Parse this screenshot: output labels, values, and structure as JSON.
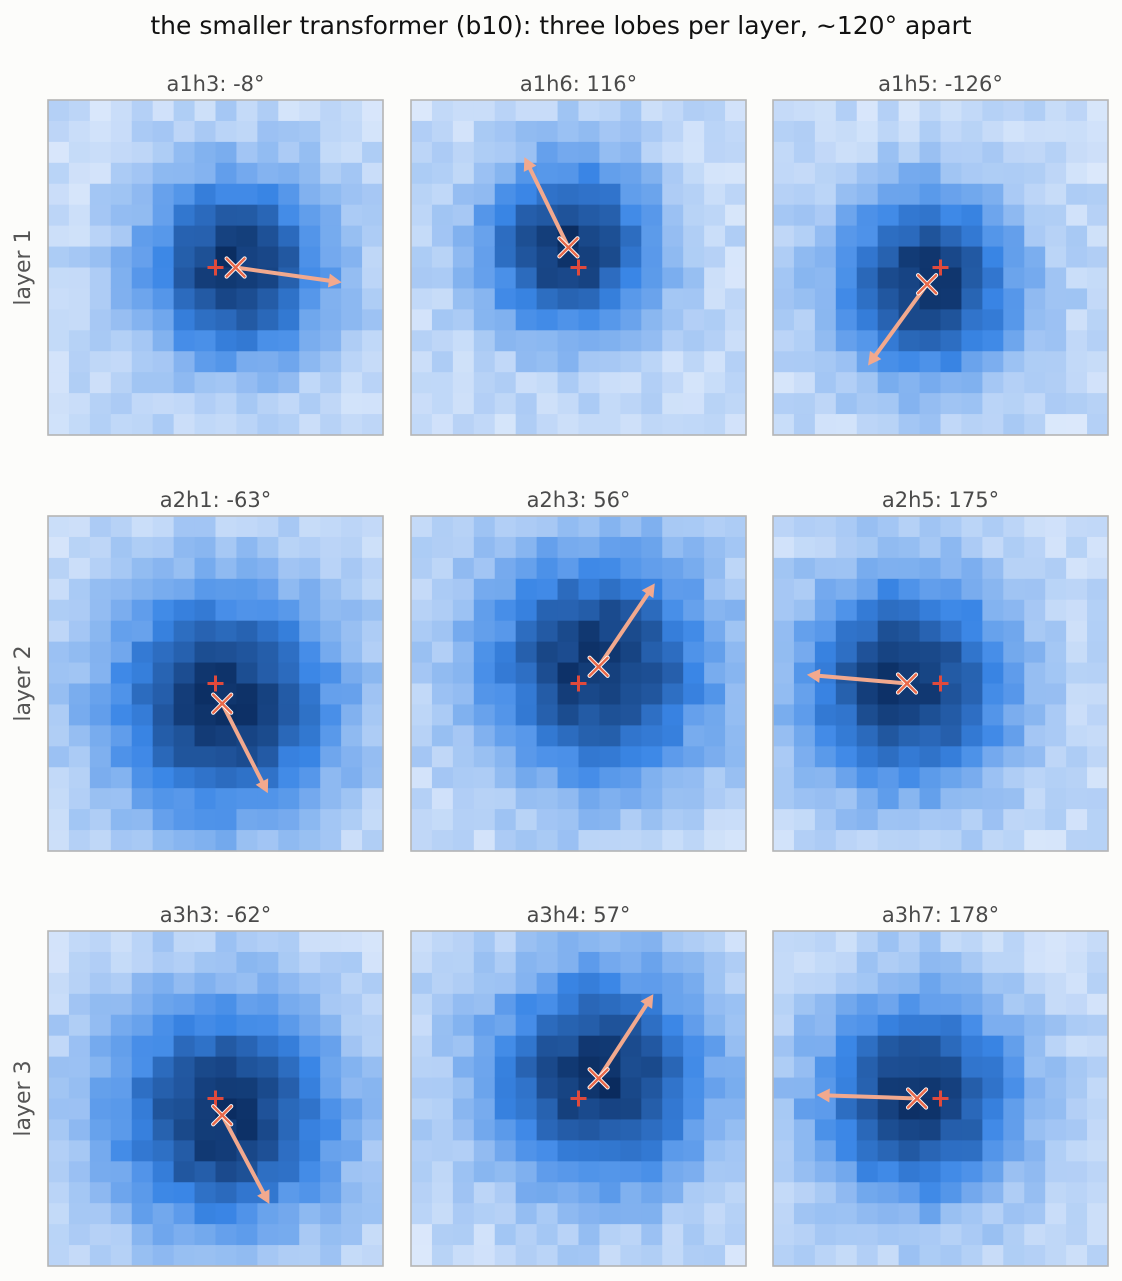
{
  "chart_data": {
    "type": "heatmap",
    "title": "the smaller transformer (b10): three lobes per layer, ~120° apart",
    "rows": [
      {
        "label": "layer 1"
      },
      {
        "label": "layer 2"
      },
      {
        "label": "layer 3"
      }
    ],
    "grid_cells": 16,
    "colors": {
      "light": "#dbe8fb",
      "mid": "#3a86e6",
      "dark": "#0a2b5e",
      "arrow": "#f2a98e",
      "marker_plus": "#e04a3c",
      "marker_x": "#e8694a",
      "frame": "#b5b5b5"
    },
    "panels": [
      {
        "label": "a1h3: -8°",
        "angle": -8,
        "center": [
          0.5,
          0.5
        ],
        "peak": [
          0.56,
          0.5
        ],
        "length": 0.32,
        "spread": 0.19
      },
      {
        "label": "a1h6: 116°",
        "angle": 116,
        "center": [
          0.5,
          0.5
        ],
        "peak": [
          0.47,
          0.44
        ],
        "length": 0.3,
        "spread": 0.18
      },
      {
        "label": "a1h5: -126°",
        "angle": -126,
        "center": [
          0.5,
          0.5
        ],
        "peak": [
          0.46,
          0.55
        ],
        "length": 0.3,
        "spread": 0.19
      },
      {
        "label": "a2h1: -63°",
        "angle": -63,
        "center": [
          0.5,
          0.5
        ],
        "peak": [
          0.52,
          0.56
        ],
        "length": 0.3,
        "spread": 0.24
      },
      {
        "label": "a2h3: 56°",
        "angle": 56,
        "center": [
          0.5,
          0.5
        ],
        "peak": [
          0.56,
          0.45
        ],
        "length": 0.3,
        "spread": 0.24
      },
      {
        "label": "a2h5: 175°",
        "angle": 175,
        "center": [
          0.5,
          0.5
        ],
        "peak": [
          0.4,
          0.5
        ],
        "length": 0.3,
        "spread": 0.22
      },
      {
        "label": "a3h3: -62°",
        "angle": -62,
        "center": [
          0.5,
          0.5
        ],
        "peak": [
          0.52,
          0.55
        ],
        "length": 0.3,
        "spread": 0.24
      },
      {
        "label": "a3h4: 57°",
        "angle": 57,
        "center": [
          0.5,
          0.5
        ],
        "peak": [
          0.56,
          0.44
        ],
        "length": 0.3,
        "spread": 0.23
      },
      {
        "label": "a3h7: 178°",
        "angle": 178,
        "center": [
          0.5,
          0.5
        ],
        "peak": [
          0.43,
          0.5
        ],
        "length": 0.3,
        "spread": 0.21
      }
    ]
  }
}
